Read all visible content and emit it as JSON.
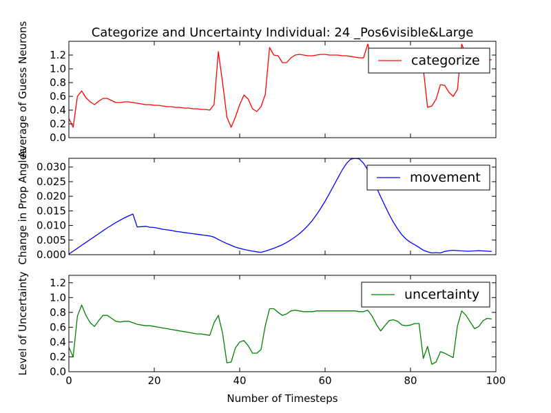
{
  "chart_data": [
    {
      "type": "line",
      "title": "Categorize and Uncertainty Individual: 24 _Pos6visible&Large",
      "ylabel": "Average of Guess Neurons",
      "xlabel": "",
      "xlim": [
        0,
        100
      ],
      "ylim": [
        0,
        1.4
      ],
      "xticks": [
        0,
        20,
        40,
        60,
        80,
        100
      ],
      "yticks": [
        0.0,
        0.2,
        0.4,
        0.6,
        0.8,
        1.0,
        1.2
      ],
      "ytick_labels": [
        "0.0",
        "0.2",
        "0.4",
        "0.6",
        "0.8",
        "1.0",
        "1.2"
      ],
      "show_x_tick_labels": false,
      "legend_placement": "upper right",
      "series": [
        {
          "name": "categorize",
          "color": "#ff0000",
          "x": [
            0,
            1,
            2,
            3,
            4,
            5,
            6,
            7,
            8,
            9,
            10,
            11,
            12,
            13,
            14,
            15,
            16,
            17,
            18,
            19,
            20,
            21,
            22,
            23,
            24,
            25,
            26,
            27,
            28,
            29,
            30,
            31,
            32,
            33,
            34,
            35,
            36,
            37,
            38,
            39,
            40,
            41,
            42,
            43,
            44,
            45,
            46,
            47,
            48,
            49,
            50,
            51,
            52,
            53,
            54,
            55,
            56,
            57,
            58,
            59,
            60,
            61,
            62,
            63,
            64,
            65,
            66,
            67,
            68,
            69,
            70,
            71,
            72,
            73,
            74,
            75,
            76,
            77,
            78,
            79,
            80,
            81,
            82,
            83,
            84,
            85,
            86,
            87,
            88,
            89,
            90,
            91,
            92,
            93,
            94,
            95,
            96,
            97,
            98,
            99
          ],
          "values": [
            0.28,
            0.15,
            0.6,
            0.68,
            0.58,
            0.52,
            0.48,
            0.53,
            0.57,
            0.57,
            0.54,
            0.51,
            0.51,
            0.52,
            0.52,
            0.51,
            0.5,
            0.49,
            0.48,
            0.48,
            0.47,
            0.47,
            0.46,
            0.45,
            0.45,
            0.44,
            0.44,
            0.43,
            0.43,
            0.42,
            0.42,
            0.41,
            0.41,
            0.4,
            0.48,
            1.25,
            0.8,
            0.3,
            0.15,
            0.3,
            0.48,
            0.62,
            0.56,
            0.42,
            0.38,
            0.45,
            0.63,
            1.31,
            1.2,
            1.19,
            1.09,
            1.09,
            1.16,
            1.2,
            1.21,
            1.2,
            1.19,
            1.19,
            1.2,
            1.21,
            1.21,
            1.2,
            1.2,
            1.2,
            1.19,
            1.19,
            1.18,
            1.17,
            1.16,
            1.16,
            1.36,
            1.1,
            1.0,
            1.0,
            1.0,
            1.0,
            1.0,
            1.0,
            1.0,
            1.0,
            1.0,
            1.0,
            1.0,
            1.0,
            0.44,
            0.46,
            0.56,
            0.77,
            0.76,
            0.66,
            0.6,
            0.7,
            1.36,
            1.2,
            1.14,
            1.15,
            1.15,
            1.15,
            1.14,
            1.13
          ]
        }
      ]
    },
    {
      "type": "line",
      "title": "",
      "ylabel": "Change in Prop Angles",
      "xlabel": "",
      "xlim": [
        0,
        100
      ],
      "ylim": [
        0,
        0.033
      ],
      "xticks": [
        0,
        20,
        40,
        60,
        80,
        100
      ],
      "yticks": [
        0.0,
        0.005,
        0.01,
        0.015,
        0.02,
        0.025,
        0.03
      ],
      "ytick_labels": [
        "0.000",
        "0.005",
        "0.010",
        "0.015",
        "0.020",
        "0.025",
        "0.030"
      ],
      "show_x_tick_labels": false,
      "legend_placement": "upper right",
      "series": [
        {
          "name": "movement",
          "color": "#0000ff",
          "x": [
            0,
            1,
            2,
            3,
            4,
            5,
            6,
            7,
            8,
            9,
            10,
            11,
            12,
            13,
            14,
            15,
            16,
            17,
            18,
            19,
            20,
            21,
            22,
            23,
            24,
            25,
            26,
            27,
            28,
            29,
            30,
            31,
            32,
            33,
            34,
            35,
            36,
            37,
            38,
            39,
            40,
            41,
            42,
            43,
            44,
            45,
            46,
            47,
            48,
            49,
            50,
            51,
            52,
            53,
            54,
            55,
            56,
            57,
            58,
            59,
            60,
            61,
            62,
            63,
            64,
            65,
            66,
            67,
            68,
            69,
            70,
            71,
            72,
            73,
            74,
            75,
            76,
            77,
            78,
            79,
            80,
            81,
            82,
            83,
            84,
            85,
            86,
            87,
            88,
            89,
            90,
            91,
            92,
            93,
            94,
            95,
            96,
            97,
            98,
            99
          ],
          "values": [
            0.0002,
            0.0012,
            0.0022,
            0.0032,
            0.0042,
            0.0052,
            0.0062,
            0.0072,
            0.0082,
            0.0092,
            0.0101,
            0.011,
            0.0118,
            0.0126,
            0.0133,
            0.0139,
            0.0095,
            0.0096,
            0.0097,
            0.0094,
            0.0093,
            0.009,
            0.0087,
            0.0085,
            0.0083,
            0.008,
            0.0078,
            0.0076,
            0.0074,
            0.0072,
            0.007,
            0.0068,
            0.0066,
            0.0064,
            0.006,
            0.0052,
            0.0045,
            0.0038,
            0.0032,
            0.0026,
            0.0022,
            0.0018,
            0.0015,
            0.0012,
            0.001,
            0.0008,
            0.0012,
            0.0017,
            0.0022,
            0.0028,
            0.0034,
            0.0042,
            0.0051,
            0.0061,
            0.0072,
            0.0085,
            0.01,
            0.0117,
            0.0137,
            0.0159,
            0.0183,
            0.0209,
            0.0236,
            0.0263,
            0.029,
            0.0312,
            0.0327,
            0.0333,
            0.0328,
            0.0313,
            0.029,
            0.0262,
            0.0231,
            0.0199,
            0.0168,
            0.0138,
            0.0111,
            0.0088,
            0.0068,
            0.0053,
            0.0042,
            0.0034,
            0.0025,
            0.0015,
            0.001,
            0.0006,
            0.0007,
            0.0006,
            0.0011,
            0.0014,
            0.0015,
            0.0014,
            0.0013,
            0.0012,
            0.0012,
            0.0013,
            0.0014,
            0.0013,
            0.0012,
            0.0011
          ]
        }
      ]
    },
    {
      "type": "line",
      "title": "",
      "ylabel": "Level of Uncertainty",
      "xlabel": "Number of Timesteps",
      "xlim": [
        0,
        100
      ],
      "ylim": [
        0,
        1.3
      ],
      "xticks": [
        0,
        20,
        40,
        60,
        80,
        100
      ],
      "xtick_labels": [
        "0",
        "20",
        "40",
        "60",
        "80",
        "100"
      ],
      "yticks": [
        0.0,
        0.2,
        0.4,
        0.6,
        0.8,
        1.0,
        1.2
      ],
      "ytick_labels": [
        "0.0",
        "0.2",
        "0.4",
        "0.6",
        "0.8",
        "1.0",
        "1.2"
      ],
      "show_x_tick_labels": true,
      "legend_placement": "upper right",
      "series": [
        {
          "name": "uncertainty",
          "color": "#008000",
          "x": [
            0,
            1,
            2,
            3,
            4,
            5,
            6,
            7,
            8,
            9,
            10,
            11,
            12,
            13,
            14,
            15,
            16,
            17,
            18,
            19,
            20,
            21,
            22,
            23,
            24,
            25,
            26,
            27,
            28,
            29,
            30,
            31,
            32,
            33,
            34,
            35,
            36,
            37,
            38,
            39,
            40,
            41,
            42,
            43,
            44,
            45,
            46,
            47,
            48,
            49,
            50,
            51,
            52,
            53,
            54,
            55,
            56,
            57,
            58,
            59,
            60,
            61,
            62,
            63,
            64,
            65,
            66,
            67,
            68,
            69,
            70,
            71,
            72,
            73,
            74,
            75,
            76,
            77,
            78,
            79,
            80,
            81,
            82,
            83,
            84,
            85,
            86,
            87,
            88,
            89,
            90,
            91,
            92,
            93,
            94,
            95,
            96,
            97,
            98,
            99
          ],
          "values": [
            0.33,
            0.2,
            0.75,
            0.9,
            0.76,
            0.66,
            0.61,
            0.69,
            0.76,
            0.76,
            0.72,
            0.68,
            0.67,
            0.68,
            0.68,
            0.66,
            0.64,
            0.63,
            0.62,
            0.62,
            0.61,
            0.6,
            0.59,
            0.58,
            0.57,
            0.56,
            0.55,
            0.54,
            0.53,
            0.52,
            0.51,
            0.51,
            0.5,
            0.49,
            0.66,
            0.76,
            0.52,
            0.12,
            0.13,
            0.32,
            0.4,
            0.42,
            0.35,
            0.25,
            0.25,
            0.3,
            0.62,
            0.85,
            0.85,
            0.8,
            0.76,
            0.78,
            0.82,
            0.83,
            0.82,
            0.81,
            0.81,
            0.81,
            0.82,
            0.82,
            0.82,
            0.82,
            0.82,
            0.82,
            0.82,
            0.82,
            0.82,
            0.82,
            0.81,
            0.81,
            0.83,
            0.75,
            0.64,
            0.55,
            0.62,
            0.69,
            0.7,
            0.68,
            0.63,
            0.62,
            0.63,
            0.65,
            0.65,
            0.18,
            0.34,
            0.1,
            0.13,
            0.27,
            0.25,
            0.22,
            0.19,
            0.62,
            0.82,
            0.76,
            0.67,
            0.58,
            0.61,
            0.69,
            0.72,
            0.71
          ]
        }
      ]
    }
  ]
}
